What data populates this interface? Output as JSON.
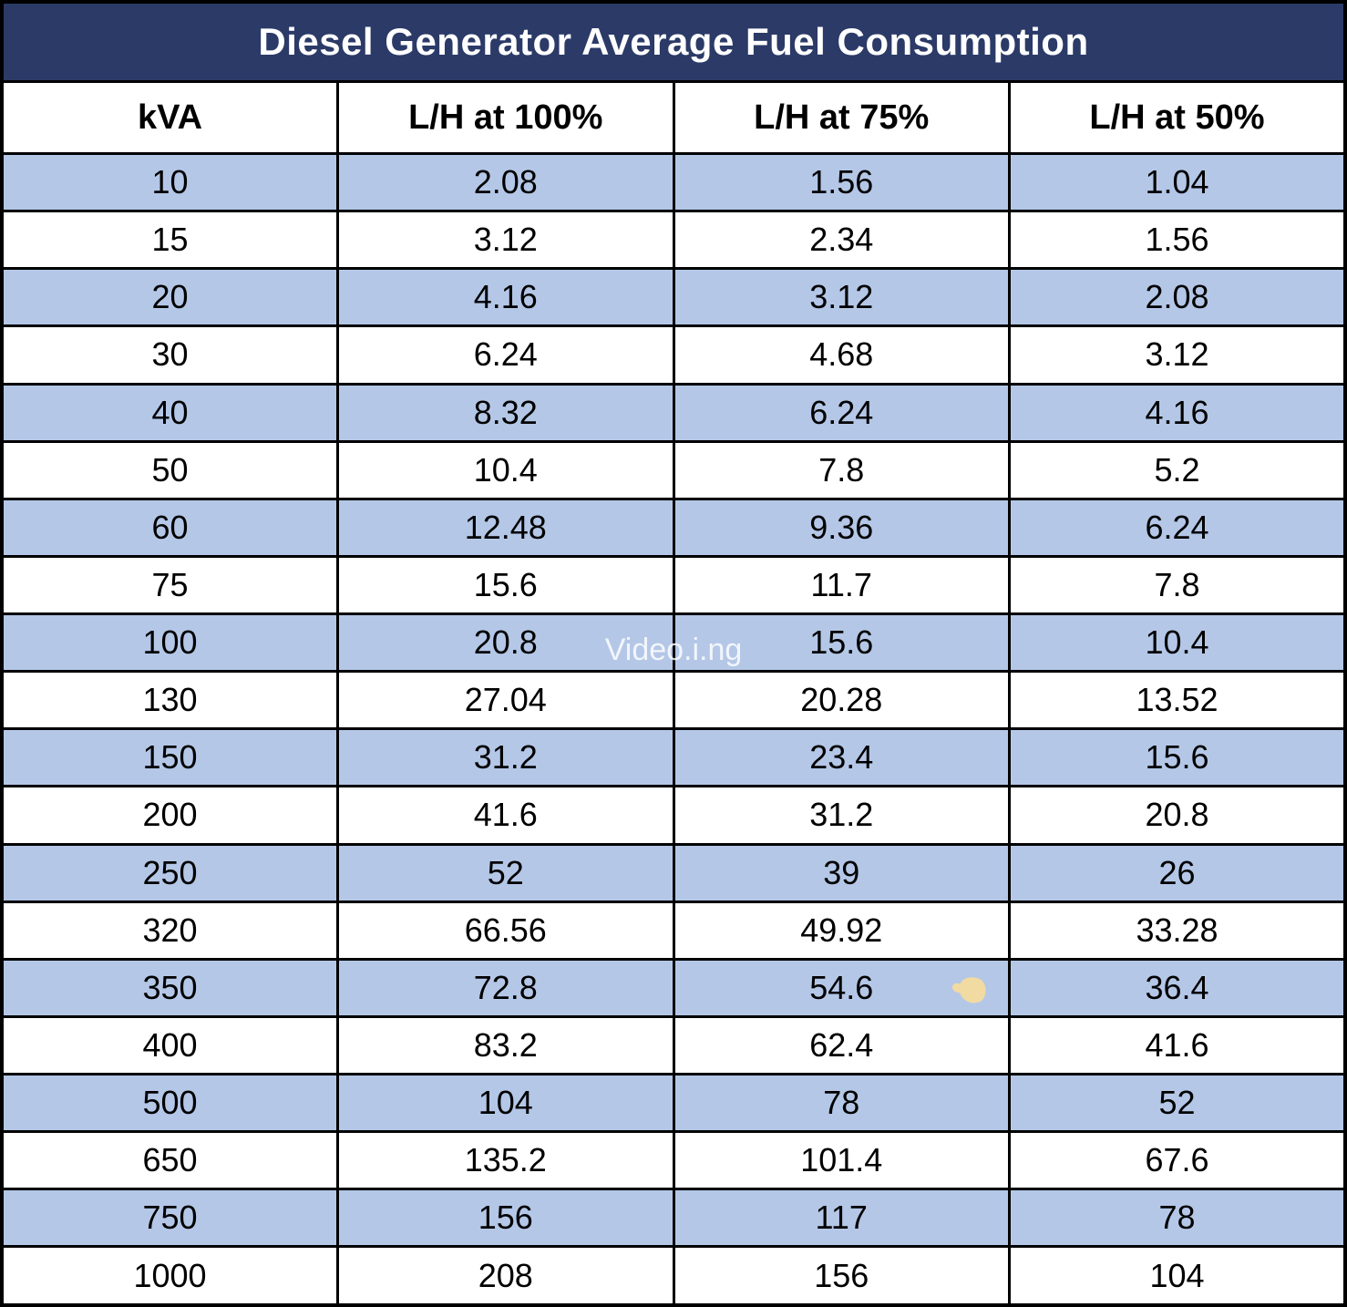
{
  "title": "Diesel Generator Average Fuel Consumption",
  "watermark": "Video.i.ng",
  "colors": {
    "title_bg": "#2B3A67",
    "title_text": "#FFFFFF",
    "row_alt_bg": "#B4C7E7",
    "row_bg": "#FFFFFF",
    "border": "#000000",
    "cell_text": "#000000",
    "smudge_artifact": "#F1DBA2"
  },
  "table": {
    "columns": [
      "kVA",
      "L/H at 100%",
      "L/H at 75%",
      "L/H at 50%"
    ],
    "rows": [
      [
        "10",
        "2.08",
        "1.56",
        "1.04"
      ],
      [
        "15",
        "3.12",
        "2.34",
        "1.56"
      ],
      [
        "20",
        "4.16",
        "3.12",
        "2.08"
      ],
      [
        "30",
        "6.24",
        "4.68",
        "3.12"
      ],
      [
        "40",
        "8.32",
        "6.24",
        "4.16"
      ],
      [
        "50",
        "10.4",
        "7.8",
        "5.2"
      ],
      [
        "60",
        "12.48",
        "9.36",
        "6.24"
      ],
      [
        "75",
        "15.6",
        "11.7",
        "7.8"
      ],
      [
        "100",
        "20.8",
        "15.6",
        "10.4"
      ],
      [
        "130",
        "27.04",
        "20.28",
        "13.52"
      ],
      [
        "150",
        "31.2",
        "23.4",
        "15.6"
      ],
      [
        "200",
        "41.6",
        "31.2",
        "20.8"
      ],
      [
        "250",
        "52",
        "39",
        "26"
      ],
      [
        "320",
        "66.56",
        "49.92",
        "33.28"
      ],
      [
        "350",
        "72.8",
        "54.6",
        "36.4"
      ],
      [
        "400",
        "83.2",
        "62.4",
        "41.6"
      ],
      [
        "500",
        "104",
        "78",
        "52"
      ],
      [
        "650",
        "135.2",
        "101.4",
        "67.6"
      ],
      [
        "750",
        "156",
        "117",
        "78"
      ],
      [
        "1000",
        "208",
        "156",
        "104"
      ]
    ]
  },
  "chart_data": {
    "type": "table",
    "title": "Diesel Generator Average Fuel Consumption",
    "columns": [
      "kVA",
      "L/H at 100%",
      "L/H at 75%",
      "L/H at 50%"
    ],
    "kva": [
      10,
      15,
      20,
      30,
      40,
      50,
      60,
      75,
      100,
      130,
      150,
      200,
      250,
      320,
      350,
      400,
      500,
      650,
      750,
      1000
    ],
    "series": [
      {
        "name": "L/H at 100%",
        "values": [
          2.08,
          3.12,
          4.16,
          6.24,
          8.32,
          10.4,
          12.48,
          15.6,
          20.8,
          27.04,
          31.2,
          41.6,
          52,
          66.56,
          72.8,
          83.2,
          104,
          135.2,
          156,
          208
        ]
      },
      {
        "name": "L/H at 75%",
        "values": [
          1.56,
          2.34,
          3.12,
          4.68,
          6.24,
          7.8,
          9.36,
          11.7,
          15.6,
          20.28,
          23.4,
          31.2,
          39,
          49.92,
          54.6,
          62.4,
          78,
          101.4,
          117,
          156
        ]
      },
      {
        "name": "L/H at 50%",
        "values": [
          1.04,
          1.56,
          2.08,
          3.12,
          4.16,
          5.2,
          6.24,
          7.8,
          10.4,
          13.52,
          15.6,
          20.8,
          26,
          33.28,
          36.4,
          41.6,
          52,
          67.6,
          78,
          104
        ]
      }
    ]
  }
}
